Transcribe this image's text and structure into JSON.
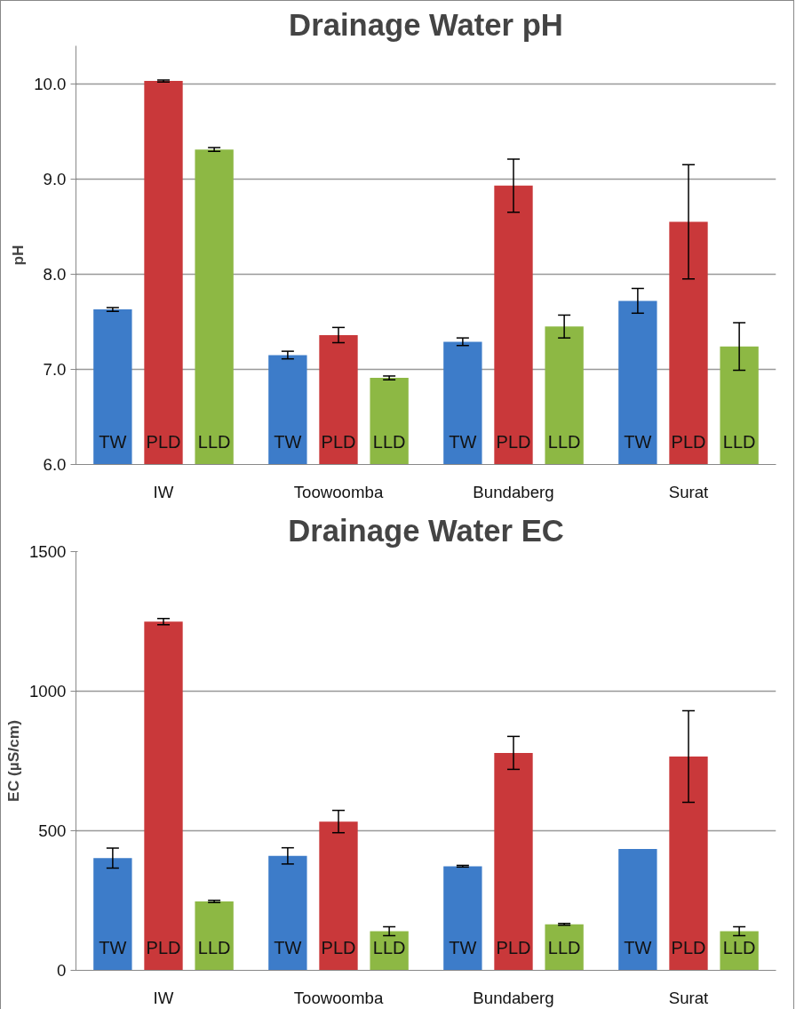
{
  "chart_data": [
    {
      "type": "bar",
      "title": "Drainage Water pH",
      "ylabel": "pH",
      "categories": [
        "IW",
        "Toowoomba",
        "Bundaberg",
        "Surat"
      ],
      "series": [
        {
          "name": "TW",
          "color": "#3d7cc9",
          "values": [
            7.63,
            7.15,
            7.29,
            7.72
          ],
          "errors": [
            0.02,
            0.04,
            0.04,
            0.13
          ]
        },
        {
          "name": "PLD",
          "color": "#c9383a",
          "values": [
            10.03,
            7.36,
            8.93,
            8.55
          ],
          "errors": [
            0.01,
            0.08,
            0.28,
            0.6
          ]
        },
        {
          "name": "LLD",
          "color": "#8db844",
          "values": [
            9.31,
            6.91,
            7.45,
            7.24
          ],
          "errors": [
            0.02,
            0.02,
            0.12,
            0.25
          ]
        }
      ],
      "ylim": [
        6.0,
        10.4
      ],
      "yticks": [
        {
          "value": 6,
          "label": "6.0"
        },
        {
          "value": 7,
          "label": "7.0"
        },
        {
          "value": 8,
          "label": "8.0"
        },
        {
          "value": 9,
          "label": "9.0"
        },
        {
          "value": 10,
          "label": "10.0"
        }
      ],
      "grid": "y",
      "legend": false
    },
    {
      "type": "bar",
      "title": "Drainage Water EC",
      "ylabel": "EC (µS/cm)",
      "categories": [
        "IW",
        "Toowoomba",
        "Bundaberg",
        "Surat"
      ],
      "series": [
        {
          "name": "TW",
          "color": "#3d7cc9",
          "values": [
            402,
            410,
            373,
            435
          ],
          "errors": [
            36,
            29,
            3,
            null
          ]
        },
        {
          "name": "PLD",
          "color": "#c9383a",
          "values": [
            1249,
            533,
            779,
            766
          ],
          "errors": [
            11,
            40,
            59,
            164
          ]
        },
        {
          "name": "LLD",
          "color": "#8db844",
          "values": [
            247,
            140,
            165,
            140
          ],
          "errors": [
            4,
            16,
            3,
            16
          ]
        }
      ],
      "ylim": [
        0,
        1500
      ],
      "yticks": [
        0,
        500,
        1000,
        1500
      ],
      "grid": "y",
      "legend": false
    }
  ]
}
